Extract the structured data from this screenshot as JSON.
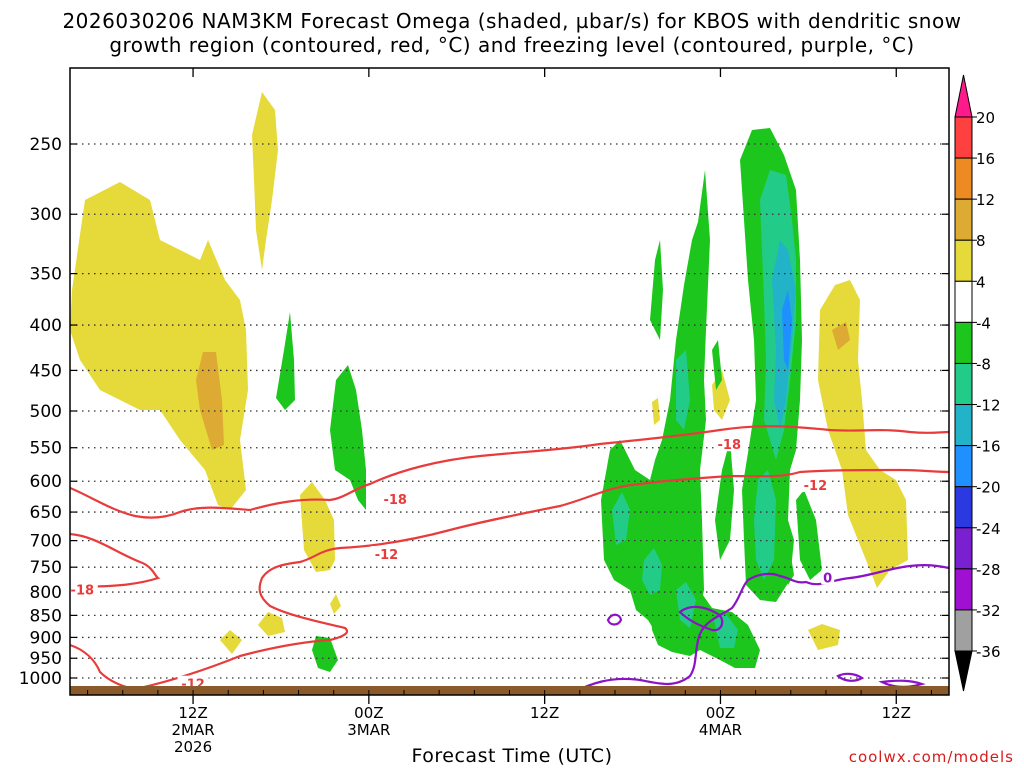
{
  "chart_data": {
    "type": "heatmap",
    "title_line_1": "2026030206 NAM3KM Forecast Omega (shaded, µbar/s) for KBOS with dendritic snow",
    "title_line_2": "growth region (contoured, red, °C) and freezing level (contoured, purple, °C)",
    "xlabel": "Forecast Time (UTC)",
    "credit": "coolwx.com/models",
    "y_axis": {
      "units": "hPa",
      "ticks": [
        250,
        300,
        350,
        400,
        450,
        500,
        550,
        600,
        650,
        700,
        750,
        800,
        850,
        900,
        950,
        1000
      ]
    },
    "x_axis": {
      "range_hours": [
        -7,
        43
      ],
      "ticks": [
        {
          "hour": 0,
          "lines": [
            "12Z",
            "2MAR",
            "2026"
          ]
        },
        {
          "hour": 10,
          "lines": [
            "00Z",
            "3MAR"
          ]
        },
        {
          "hour": 20,
          "lines": [
            "12Z"
          ]
        },
        {
          "hour": 30,
          "lines": [
            "00Z",
            "4MAR"
          ]
        },
        {
          "hour": 40,
          "lines": [
            "12Z"
          ]
        }
      ]
    },
    "colorbar": {
      "levels": [
        "20",
        "16",
        "12",
        "8",
        "4",
        "-4",
        "-8",
        "-12",
        "-16",
        "-20",
        "-24",
        "-28",
        "-32",
        "-36"
      ],
      "colors": [
        "#ff1a8c",
        "#ff4040",
        "#ee8a22",
        "#ddaa33",
        "#e6d93a",
        "#ffffff",
        "#1dc61d",
        "#22cc88",
        "#22b3c8",
        "#1e90ff",
        "#2a3ae0",
        "#7a20d0",
        "#a010d0",
        "#a0a0a0",
        "#000000"
      ]
    },
    "contour_labels": [
      {
        "text": "-18",
        "color": "#e83c3c",
        "hour": -6.3,
        "p": 795
      },
      {
        "text": "-18",
        "color": "#e83c3c",
        "hour": 11.5,
        "p": 628
      },
      {
        "text": "-12",
        "color": "#e83c3c",
        "hour": 11.0,
        "p": 725
      },
      {
        "text": "-12",
        "color": "#e83c3c",
        "hour": 0.0,
        "p": 1015
      },
      {
        "text": "-18",
        "color": "#e83c3c",
        "hour": 30.5,
        "p": 545
      },
      {
        "text": "-12",
        "color": "#e83c3c",
        "hour": 35.4,
        "p": 606
      },
      {
        "text": "0",
        "color": "#8c12c8",
        "hour": 36.1,
        "p": 770
      }
    ]
  }
}
